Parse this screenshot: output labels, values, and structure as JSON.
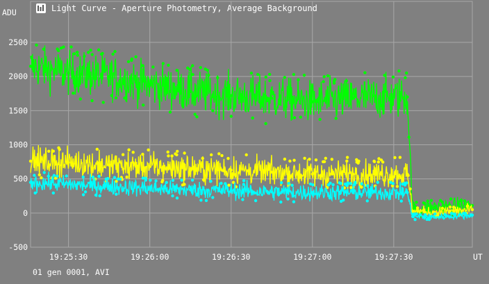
{
  "window": {
    "title": "Light Curve - Aperture Photometry, Average Background",
    "footer": "01 gen 0001, AVI"
  },
  "colors": {
    "background": "#808080",
    "grid": "#a9a9a9",
    "text": "#ffffff",
    "series": [
      "#00ff00",
      "#ffff00",
      "#00ffff"
    ]
  },
  "chart_data": {
    "type": "scatter",
    "title": "Light Curve - Aperture Photometry, Average Background",
    "ylabel": "ADU",
    "xlabel": "UT",
    "xlim": [
      "19:25:16",
      "19:27:59"
    ],
    "ylim": [
      -500,
      3100
    ],
    "x_ticks": [
      "19:25:30",
      "19:26:00",
      "19:26:30",
      "19:27:00",
      "19:27:30"
    ],
    "y_ticks": [
      -500,
      0,
      500,
      1000,
      1500,
      2000,
      2500
    ],
    "grid": true,
    "series": [
      {
        "color": "#00ff00",
        "x": [
          "19:25:16",
          "19:25:30",
          "19:25:45",
          "19:26:00",
          "19:26:15",
          "19:26:30",
          "19:26:45",
          "19:27:00",
          "19:27:15",
          "19:27:35",
          "19:27:37",
          "19:27:45",
          "19:27:59"
        ],
        "y": [
          2150,
          2050,
          2000,
          1880,
          1780,
          1720,
          1680,
          1630,
          1680,
          1700,
          60,
          80,
          110
        ]
      },
      {
        "color": "#ffff00",
        "x": [
          "19:25:16",
          "19:25:30",
          "19:25:45",
          "19:26:00",
          "19:26:15",
          "19:26:30",
          "19:26:45",
          "19:27:00",
          "19:27:15",
          "19:27:35",
          "19:27:37",
          "19:27:45",
          "19:27:59"
        ],
        "y": [
          760,
          740,
          700,
          680,
          650,
          630,
          600,
          570,
          570,
          570,
          30,
          10,
          50
        ]
      },
      {
        "color": "#00ffff",
        "x": [
          "19:25:16",
          "19:25:30",
          "19:25:45",
          "19:26:00",
          "19:26:15",
          "19:26:30",
          "19:26:45",
          "19:27:00",
          "19:27:15",
          "19:27:35",
          "19:27:37",
          "19:27:45",
          "19:27:59"
        ],
        "y": [
          450,
          420,
          390,
          360,
          340,
          330,
          310,
          300,
          300,
          300,
          -50,
          -60,
          -30
        ]
      }
    ]
  }
}
